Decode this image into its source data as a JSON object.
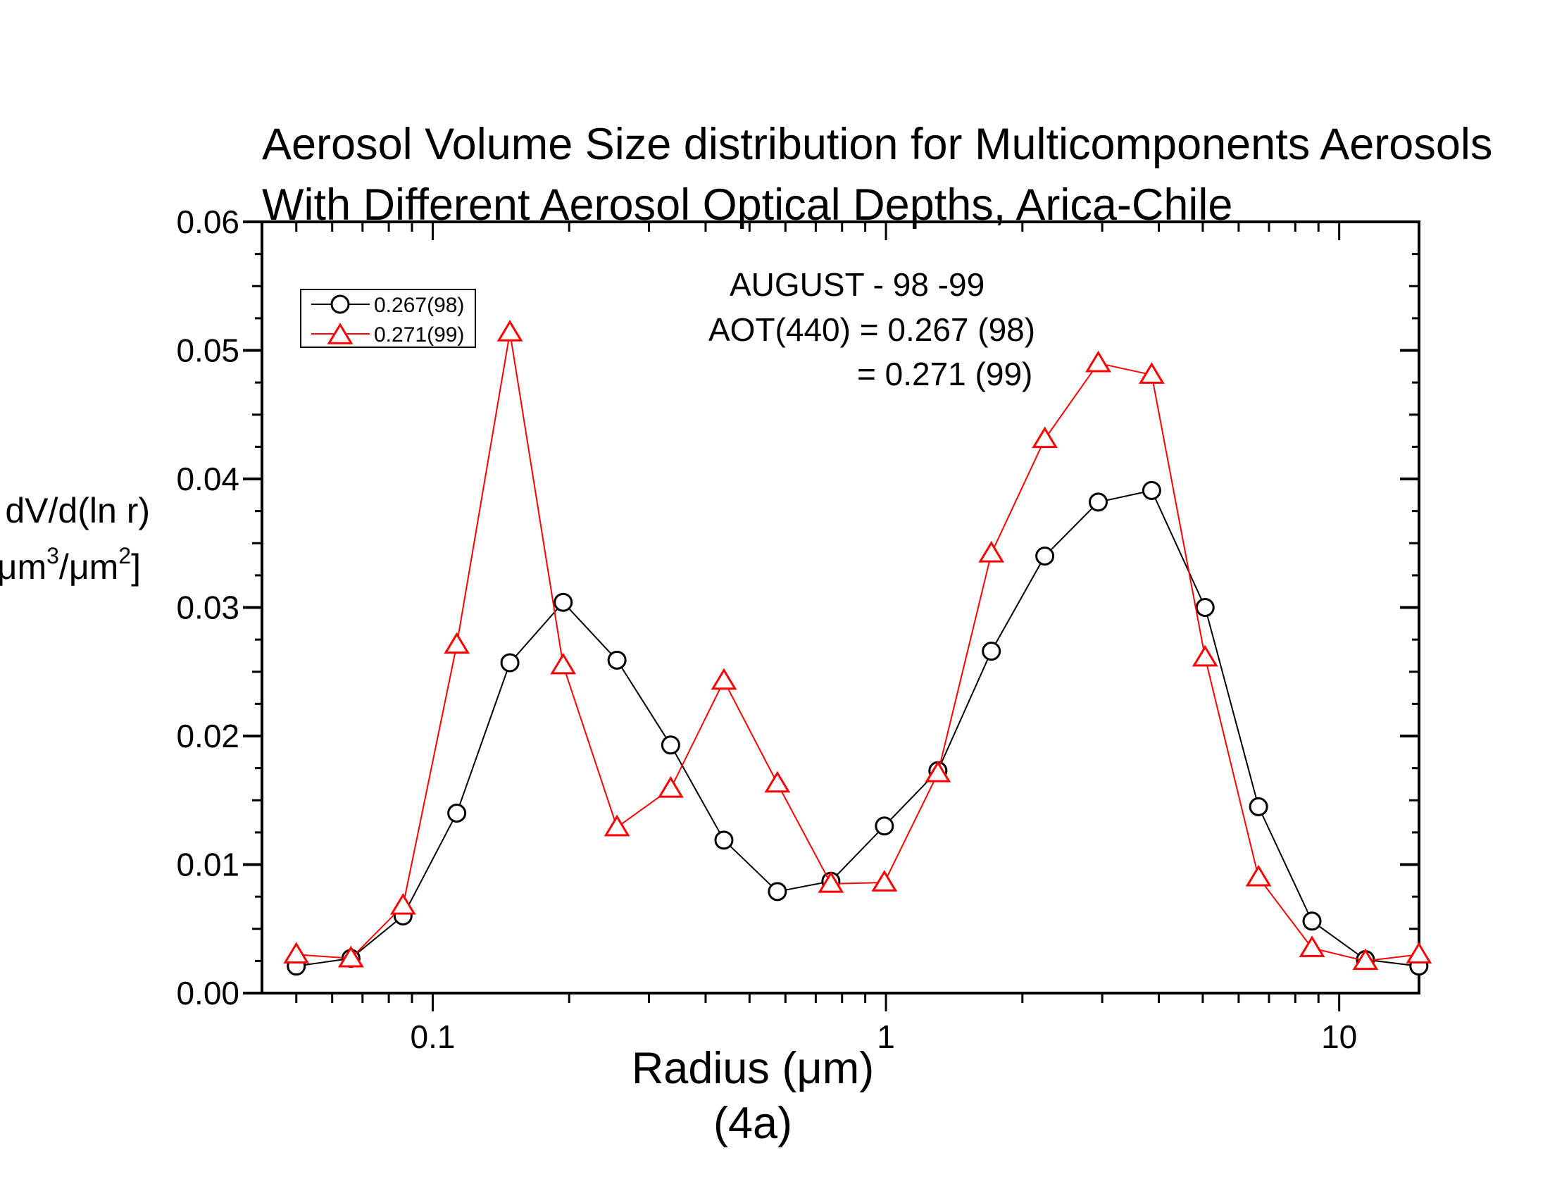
{
  "chart_data": {
    "type": "line",
    "title": "Aerosol Volume Size distribution for Multicomponents Aerosols",
    "subtitle": "With Different Aerosol Optical Depths, Arica-Chile",
    "xlabel": "Radius (μm)",
    "xlabel_pre": "Radius (",
    "xlabel_mu": "μ",
    "xlabel_post": "m)",
    "caption": "(4a)",
    "ylabel_line1": "dV/d(ln r)",
    "ylabel_line2": {
      "open": "[",
      "mu": "μ",
      "m": "m",
      "sup3": "3",
      "slash": "/",
      "sup2": "2",
      "close": "]"
    },
    "x_scale": "log",
    "xlim": [
      0.042,
      15
    ],
    "ylim": [
      0,
      0.06
    ],
    "x_tick_labels": [
      "0.1",
      "1",
      "10"
    ],
    "y_tick_labels": [
      "0.00",
      "0.01",
      "0.02",
      "0.03",
      "0.04",
      "0.05",
      "0.06"
    ],
    "grid": false,
    "legend_position": "top-left",
    "annotations": [
      "AUGUST - 98 -99",
      "AOT(440) = 0.267 (98)",
      "=  0.271 (99)"
    ],
    "x": [
      0.05,
      0.066,
      0.086,
      0.113,
      0.148,
      0.194,
      0.255,
      0.335,
      0.439,
      0.576,
      0.756,
      0.992,
      1.302,
      1.708,
      2.241,
      2.94,
      3.857,
      5.06,
      6.638,
      8.709,
      11.426,
      14.99
    ],
    "series": [
      {
        "name": "0.267(98)",
        "color": "#000000",
        "marker": "circle",
        "values": [
          0.0021,
          0.0027,
          0.006,
          0.014,
          0.0257,
          0.0304,
          0.0259,
          0.0193,
          0.0119,
          0.0079,
          0.0087,
          0.013,
          0.0173,
          0.0266,
          0.034,
          0.0382,
          0.0391,
          0.03,
          0.0145,
          0.0056,
          0.0026,
          0.0021
        ]
      },
      {
        "name": "0.271(99)",
        "color": "#ff0000",
        "marker": "triangle",
        "values": [
          0.003,
          0.0027,
          0.0068,
          0.0271,
          0.0514,
          0.0255,
          0.0129,
          0.0159,
          0.0243,
          0.0163,
          0.0085,
          0.0086,
          0.0171,
          0.0342,
          0.0431,
          0.049,
          0.0481,
          0.0261,
          0.009,
          0.0035,
          0.0025,
          0.003
        ]
      }
    ]
  }
}
